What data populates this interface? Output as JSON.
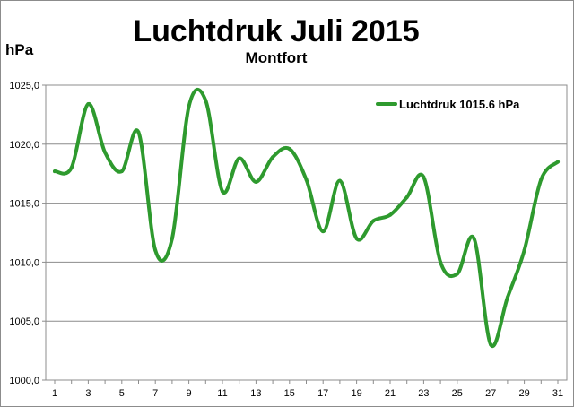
{
  "chart_data": {
    "type": "line",
    "title": "Luchtdruk Juli 2015",
    "subtitle": "Montfort",
    "ylabel": "hPa",
    "xlabel": "",
    "x": [
      1,
      2,
      3,
      4,
      5,
      6,
      7,
      8,
      9,
      10,
      11,
      12,
      13,
      14,
      15,
      16,
      17,
      18,
      19,
      20,
      21,
      22,
      23,
      24,
      25,
      26,
      27,
      28,
      29,
      30,
      31
    ],
    "x_tick_labels": [
      "1",
      "3",
      "5",
      "7",
      "9",
      "11",
      "13",
      "15",
      "17",
      "19",
      "21",
      "23",
      "25",
      "27",
      "29",
      "31"
    ],
    "y_tick_labels": [
      "1000,0",
      "1005,0",
      "1010,0",
      "1015,0",
      "1020,0",
      "1025,0"
    ],
    "ylim": [
      1000,
      1025
    ],
    "xlim": [
      1,
      31
    ],
    "grid": true,
    "legend_position": "top-right",
    "series": [
      {
        "name": "Luchtdruk 1015.6 hPa",
        "color": "#2e9a2e",
        "values": [
          1017.7,
          1018.0,
          1023.4,
          1019.3,
          1017.7,
          1021.0,
          1011.0,
          1012.0,
          1023.2,
          1023.7,
          1016.0,
          1018.8,
          1016.8,
          1018.9,
          1019.6,
          1017.0,
          1012.6,
          1016.9,
          1012.0,
          1013.5,
          1014.0,
          1015.5,
          1017.2,
          1010.0,
          1009.0,
          1012.0,
          1003.0,
          1007.0,
          1011.0,
          1017.0,
          1018.5
        ]
      }
    ]
  }
}
